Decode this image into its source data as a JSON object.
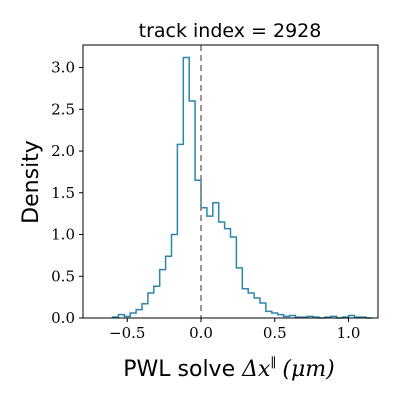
{
  "chart_data": {
    "type": "histogram",
    "title": "track index = 2928",
    "xlabel_text": "PWL solve ",
    "xlabel_math": "Δx",
    "xlabel_sup": "∥",
    "xlabel_unit": "(μm)",
    "ylabel": "Density",
    "xlim": [
      -0.8,
      1.2
    ],
    "ylim": [
      0,
      3.27
    ],
    "x_ticks": [
      -0.5,
      0.0,
      0.5,
      1.0
    ],
    "x_tick_labels": [
      "−0.5",
      "0.0",
      "0.5",
      "1.0"
    ],
    "y_ticks": [
      0.0,
      0.5,
      1.0,
      1.5,
      2.0,
      2.5,
      3.0
    ],
    "y_tick_labels": [
      "0.0",
      "0.5",
      "1.0",
      "1.5",
      "2.0",
      "2.5",
      "3.0"
    ],
    "bin_edges": [
      -0.6,
      -0.56,
      -0.52,
      -0.48,
      -0.44,
      -0.4,
      -0.36,
      -0.32,
      -0.28,
      -0.24,
      -0.2,
      -0.16,
      -0.12,
      -0.08,
      -0.04,
      0.0,
      0.04,
      0.08,
      0.12,
      0.16,
      0.2,
      0.24,
      0.28,
      0.32,
      0.36,
      0.4,
      0.44,
      0.48,
      0.52,
      0.56,
      0.6,
      0.64,
      0.68,
      0.72,
      0.76,
      0.8,
      0.84,
      0.88,
      0.92,
      0.96,
      1.0,
      1.04,
      1.08,
      1.12,
      1.16
    ],
    "densities": [
      0.01,
      0.04,
      0.02,
      0.06,
      0.1,
      0.17,
      0.3,
      0.38,
      0.58,
      0.74,
      1.0,
      2.08,
      3.12,
      2.6,
      1.65,
      1.32,
      1.22,
      1.38,
      1.15,
      1.07,
      0.97,
      0.6,
      0.35,
      0.3,
      0.24,
      0.18,
      0.08,
      0.06,
      0.04,
      0.02,
      0.03,
      0.01,
      0.01,
      0.02,
      0.01,
      0.0,
      0.01,
      0.02,
      0.0,
      0.01,
      0.03,
      0.01,
      0.01,
      0.0
    ],
    "reference_line_x": 0.0,
    "colors": {
      "histogram": "#2e86ab",
      "reference_line": "#808080"
    },
    "grid": false
  }
}
